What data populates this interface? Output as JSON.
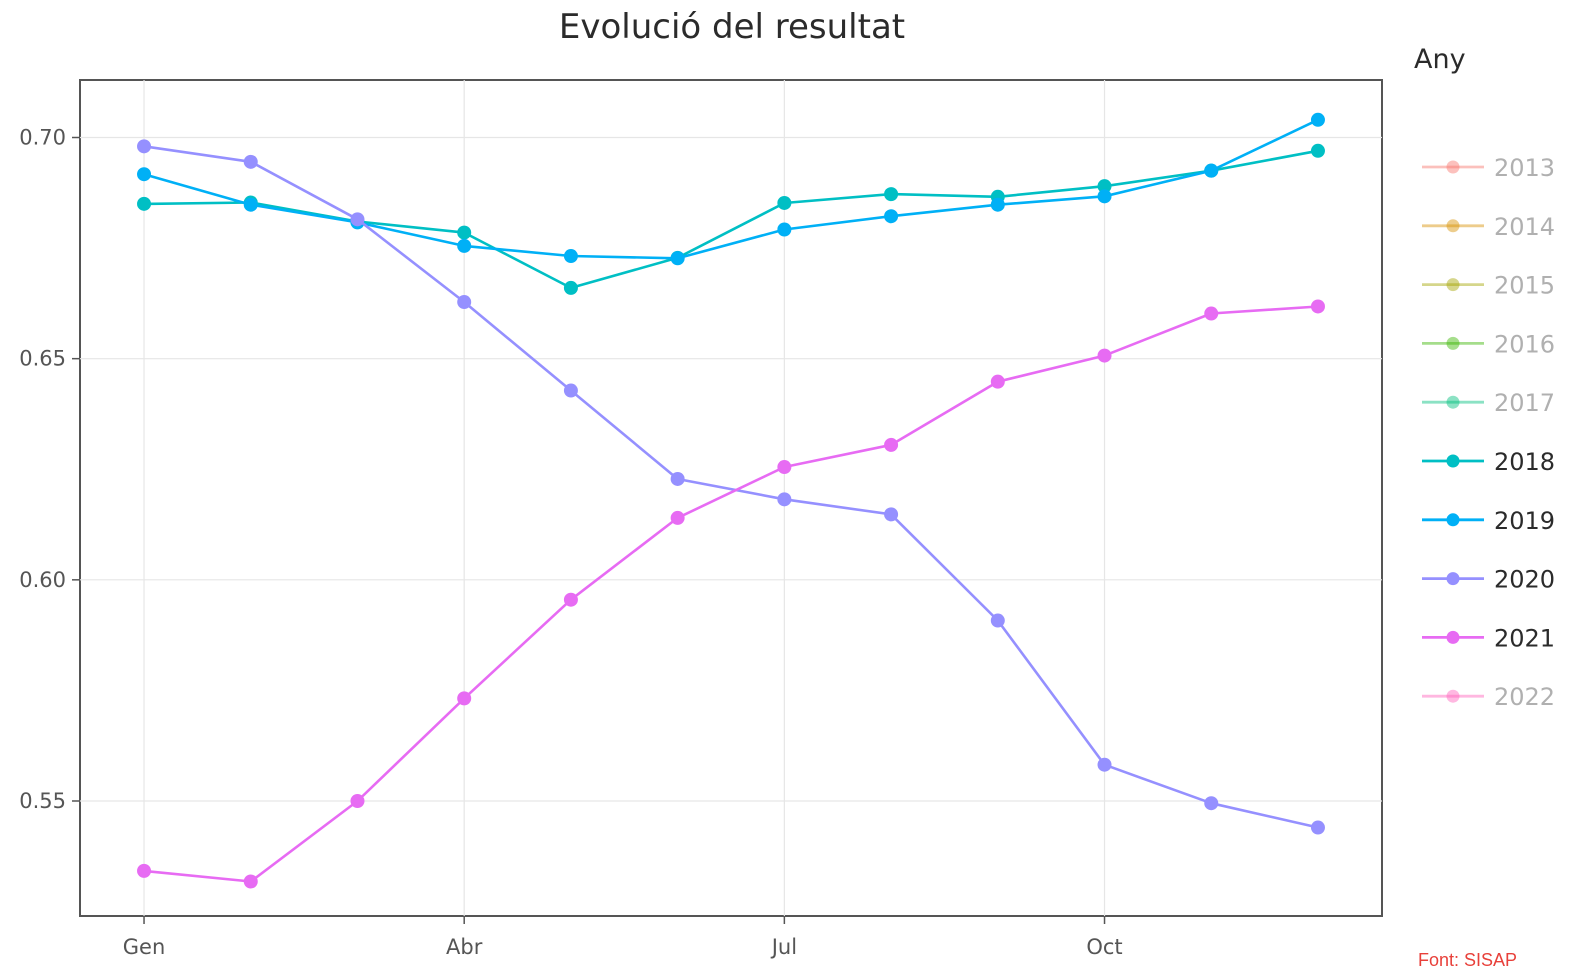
{
  "chart_data": {
    "type": "line",
    "title": "Evolució del resultat",
    "xlabel": "",
    "ylabel": "",
    "x_ticks": [
      "Gen",
      "Abr",
      "Jul",
      "Oct"
    ],
    "x_tick_months": [
      1,
      4,
      7,
      10
    ],
    "x_range": [
      0.4,
      12.6
    ],
    "y_ticks": [
      "0.70",
      "0.65",
      "0.60",
      "0.55"
    ],
    "y_tick_values": [
      0.7,
      0.65,
      0.6,
      0.55
    ],
    "ylim": [
      0.524,
      0.713
    ],
    "grid": true,
    "legend": {
      "title": "Any",
      "position": "right",
      "entries": [
        {
          "label": "2013",
          "color": "#F8766D",
          "active": false
        },
        {
          "label": "2014",
          "color": "#D89000",
          "active": false
        },
        {
          "label": "2015",
          "color": "#A3A500",
          "active": false
        },
        {
          "label": "2016",
          "color": "#39B600",
          "active": false
        },
        {
          "label": "2017",
          "color": "#00BF7D",
          "active": false
        },
        {
          "label": "2018",
          "color": "#00BFC4",
          "active": true
        },
        {
          "label": "2019",
          "color": "#00B0F6",
          "active": true
        },
        {
          "label": "2020",
          "color": "#9590FF",
          "active": true
        },
        {
          "label": "2021",
          "color": "#E76BF3",
          "active": true
        },
        {
          "label": "2022",
          "color": "#FF62BC",
          "active": false
        }
      ]
    },
    "x": [
      1,
      2,
      3,
      4,
      5,
      6,
      7,
      8,
      9,
      10,
      11,
      12
    ],
    "series": [
      {
        "name": "2018",
        "color": "#00BFC4",
        "values": [
          0.685,
          0.6853,
          0.681,
          0.6785,
          0.666,
          0.6728,
          0.6852,
          0.6872,
          0.6866,
          0.689,
          0.6925,
          0.697
        ]
      },
      {
        "name": "2019",
        "color": "#00B0F6",
        "values": [
          0.6917,
          0.6848,
          0.6808,
          0.6755,
          0.6732,
          0.6727,
          0.6792,
          0.6822,
          0.6848,
          0.6867,
          0.6925,
          0.704
        ]
      },
      {
        "name": "2020",
        "color": "#9590FF",
        "values": [
          0.698,
          0.6945,
          0.6815,
          0.6628,
          0.6428,
          0.6228,
          0.6182,
          0.6148,
          0.5908,
          0.5582,
          0.5495,
          0.544
        ]
      },
      {
        "name": "2021",
        "color": "#E76BF3",
        "values": [
          0.5342,
          0.5318,
          0.55,
          0.5732,
          0.5955,
          0.614,
          0.6255,
          0.6305,
          0.6448,
          0.6507,
          0.6602,
          0.6618
        ]
      }
    ]
  },
  "source_note": "Font: SISAP"
}
